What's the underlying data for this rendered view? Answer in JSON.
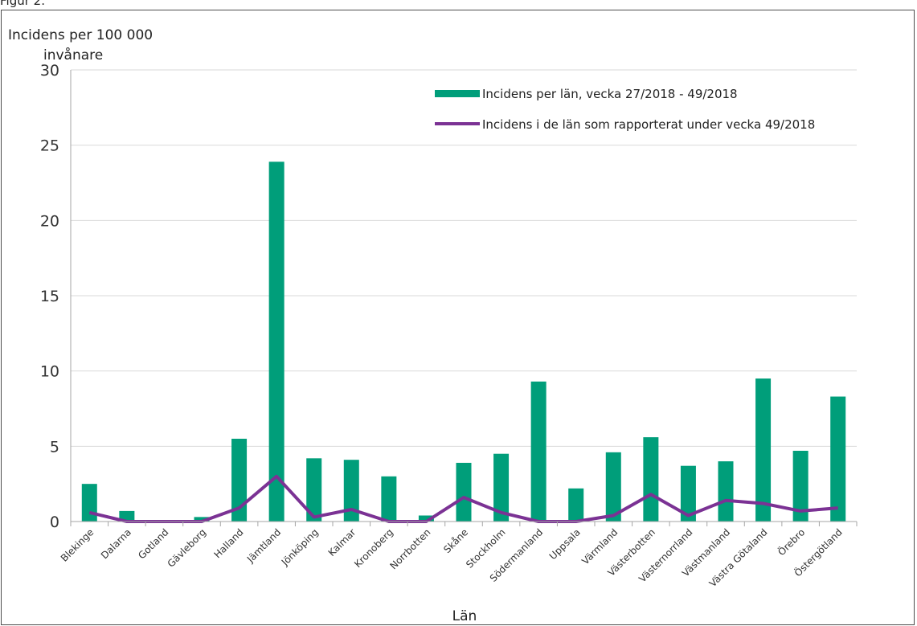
{
  "figure_label": "Figur 2.",
  "colors": {
    "bar": "#009e7a",
    "line": "#7b3294",
    "grid": "#d9d9d9",
    "axis": "#a6a6a6"
  },
  "chart_data": {
    "type": "bar",
    "ylabel_line1": "Incidens per 100 000",
    "ylabel_line2": "invånare",
    "xlabel": "Län",
    "ylim": [
      0,
      30
    ],
    "yticks": [
      0,
      5,
      10,
      15,
      20,
      25,
      30
    ],
    "grid": true,
    "legend_position": "top-right",
    "categories": [
      "Blekinge",
      "Dalarna",
      "Gotland",
      "Gävleborg",
      "Halland",
      "Jämtland",
      "Jönköping",
      "Kalmar",
      "Kronoberg",
      "Norrbotten",
      "Skåne",
      "Stockholm",
      "Södermanland",
      "Uppsala",
      "Värmland",
      "Västerbotten",
      "Västernorrland",
      "Västmanland",
      "Västra Götaland",
      "Örebro",
      "Östergötland"
    ],
    "series": [
      {
        "name": "Incidens per län, vecka 27/2018 - 49/2018",
        "kind": "bar",
        "values": [
          2.5,
          0.7,
          0,
          0.3,
          5.5,
          23.9,
          4.2,
          4.1,
          3.0,
          0.4,
          3.9,
          4.5,
          9.3,
          2.2,
          4.6,
          5.6,
          3.7,
          4.0,
          9.5,
          4.7,
          8.3
        ]
      },
      {
        "name": "Incidens i de län som rapporterat under vecka 49/2018",
        "kind": "line",
        "values": [
          0.6,
          0.0,
          0.0,
          0.0,
          0.9,
          3.0,
          0.3,
          0.8,
          0.0,
          0.0,
          1.6,
          0.6,
          0.0,
          0.0,
          0.4,
          1.8,
          0.4,
          1.4,
          1.2,
          0.7,
          0.9
        ]
      }
    ]
  }
}
